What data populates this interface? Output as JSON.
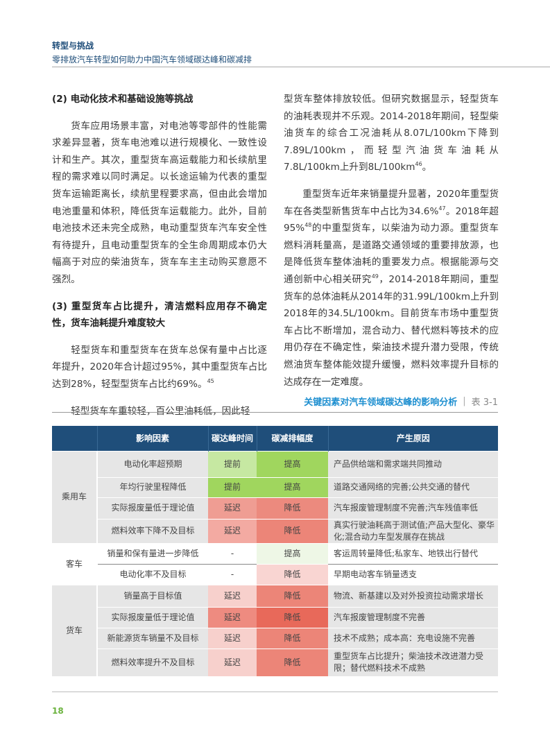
{
  "header": {
    "section": "转型与挑战",
    "subtitle": "零排放汽车转型如何助力中国汽车领域碳达峰和碳减排"
  },
  "left": {
    "h1": "(2) 电动化技术和基础设施等挑战",
    "p1": "货车应用场景丰富，对电池等零部件的性能需求差异显著，货车电池难以进行规模化、一致性设计和生产。其次，重型货车高运载能力和长续航里程的需求难以同时满足。以长途运输为代表的重型货车运输距离长，续航里程要求高，但由此会增加电池重量和体积，降低货车运载能力。此外，目前电池技术还未完全成熟，电动重型货车汽车安全性有待提升，且电动重型货车的全生命周期成本仍大幅高于对应的柴油货车，货车车主主动购买意愿不强烈。",
    "h2": "(3) 重型货车占比提升，清洁燃料应用存不确定性，货车油耗提升难度较大",
    "p2": "轻型货车和重型货车在货车总保有量中占比逐年提升，2020年合计超过95%，其中重型货车占比达到28%，轻型型货车占比约69%。",
    "p2_sup": "45",
    "p3": "轻型货车车重较轻，百公里油耗低，因此轻"
  },
  "right": {
    "p1": "型货车整体排放较低。但研究数据显示，轻型货车的油耗表现并不乐观。2014-2018年期间，轻型柴油货车的综合工况油耗从8.07L/100km下降到7.89L/100km，而轻型汽油货车油耗从7.8L/100km上升到8L/100km",
    "p1_sup": "46",
    "p1_end": "。",
    "p2a": "重型货车近年来销量提升显著，2020年重型货车在各类型新售货车中占比为34.6%",
    "sup47": "47",
    "p2b": "。2018年超95%",
    "sup48": "48",
    "p2c": "的中重型货车，以柴油为动力源。重型货车燃料消耗量高，是道路交通领域的重要排放源，也是降低货车整体油耗的重要发力点。根据能源与交通创新中心相关研究",
    "sup49": "49",
    "p2d": "，2014-2018年期间，重型货车的总体油耗从2014年的31.99L/100km上升到2018年的34.5L/100km。目前货车市场中重型货车占比不断增加，混合动力、替代燃料等技术的应用仍存在不确定性，柴油技术提升潜力受限，传统燃油货车整体能效提升缓慢，燃料效率提升目标的达成存在一定难度。"
  },
  "table": {
    "title": "关键因素对汽车领域碳达峰的影响分析",
    "label": "表 3-1",
    "headers": [
      "",
      "影响因素",
      "碳达峰时间",
      "碳减排幅度",
      "产生原因"
    ],
    "groups": [
      {
        "name": "乘用车",
        "style": "g",
        "rows": [
          {
            "factor": "电动化率超预期",
            "peak": "提前",
            "peak_color": "#c6e8a2",
            "reduce": "提高",
            "reduce_color": "#a0d65e",
            "reason": "产品供给端和需求端共同推动"
          },
          {
            "factor": "年均行驶里程降低",
            "peak": "提前",
            "peak_color": "#a0d65e",
            "reduce": "提高",
            "reduce_color": "#a0d65e",
            "reason": "道路交通网络的完善;公共交通的替代"
          },
          {
            "factor": "实际报废量低于理论值",
            "peak": "延迟",
            "peak_color": "#ef9d93",
            "reduce": "降低",
            "reduce_color": "#ec8a7e",
            "reason": "汽车报废管理制度不完善;汽车残值率低"
          },
          {
            "factor": "燃料效率下降不及目标",
            "peak": "延迟",
            "peak_color": "#f3aaa2",
            "reduce": "降低",
            "reduce_color": "#ec8578",
            "reason": "真实行驶油耗高于测试值;产品大型化、豪华化;混合动力车型发展存在挑战"
          }
        ]
      },
      {
        "name": "客车",
        "style": "w",
        "rows": [
          {
            "factor": "销量和保有量进一步降低",
            "peak": "-",
            "peak_color": "#ffffff",
            "reduce": "提高",
            "reduce_color": "#eef7e6",
            "reason": "客运周转量降低;私家车、地铁出行替代"
          },
          {
            "factor": "电动化率不及目标",
            "peak": "-",
            "peak_color": "#ffffff",
            "reduce": "降低",
            "reduce_color": "#f9d5d2",
            "reason": "早期电动客车销量透支"
          }
        ]
      },
      {
        "name": "货车",
        "style": "g",
        "rows": [
          {
            "factor": "销量高于目标值",
            "peak": "延迟",
            "peak_color": "#f7d0cc",
            "reduce": "降低",
            "reduce_color": "#ec8578",
            "reason": "物流、新基建以及对外投资拉动需求增长"
          },
          {
            "factor": "实际报废量低于理论值",
            "peak": "延迟",
            "peak_color": "#ee8b80",
            "reduce": "降低",
            "reduce_color": "#e8695a",
            "reason": "汽车报废管理制度不完善"
          },
          {
            "factor": "新能源货车销量不及目标",
            "peak": "延迟",
            "peak_color": "#f7d0cc",
            "reduce": "降低",
            "reduce_color": "#ec8578",
            "reason": "技术不成熟；成本高：充电设施不完善"
          },
          {
            "factor": "燃料效率提升不及目标",
            "peak": "延迟",
            "peak_color": "#f7d0cc",
            "reduce": "降低",
            "reduce_color": "#ec8578",
            "reason": "重型货车占比提升；柴油技术改进潜力受限；替代燃料技术不成熟"
          }
        ]
      }
    ]
  },
  "footer": {
    "page": "18"
  }
}
